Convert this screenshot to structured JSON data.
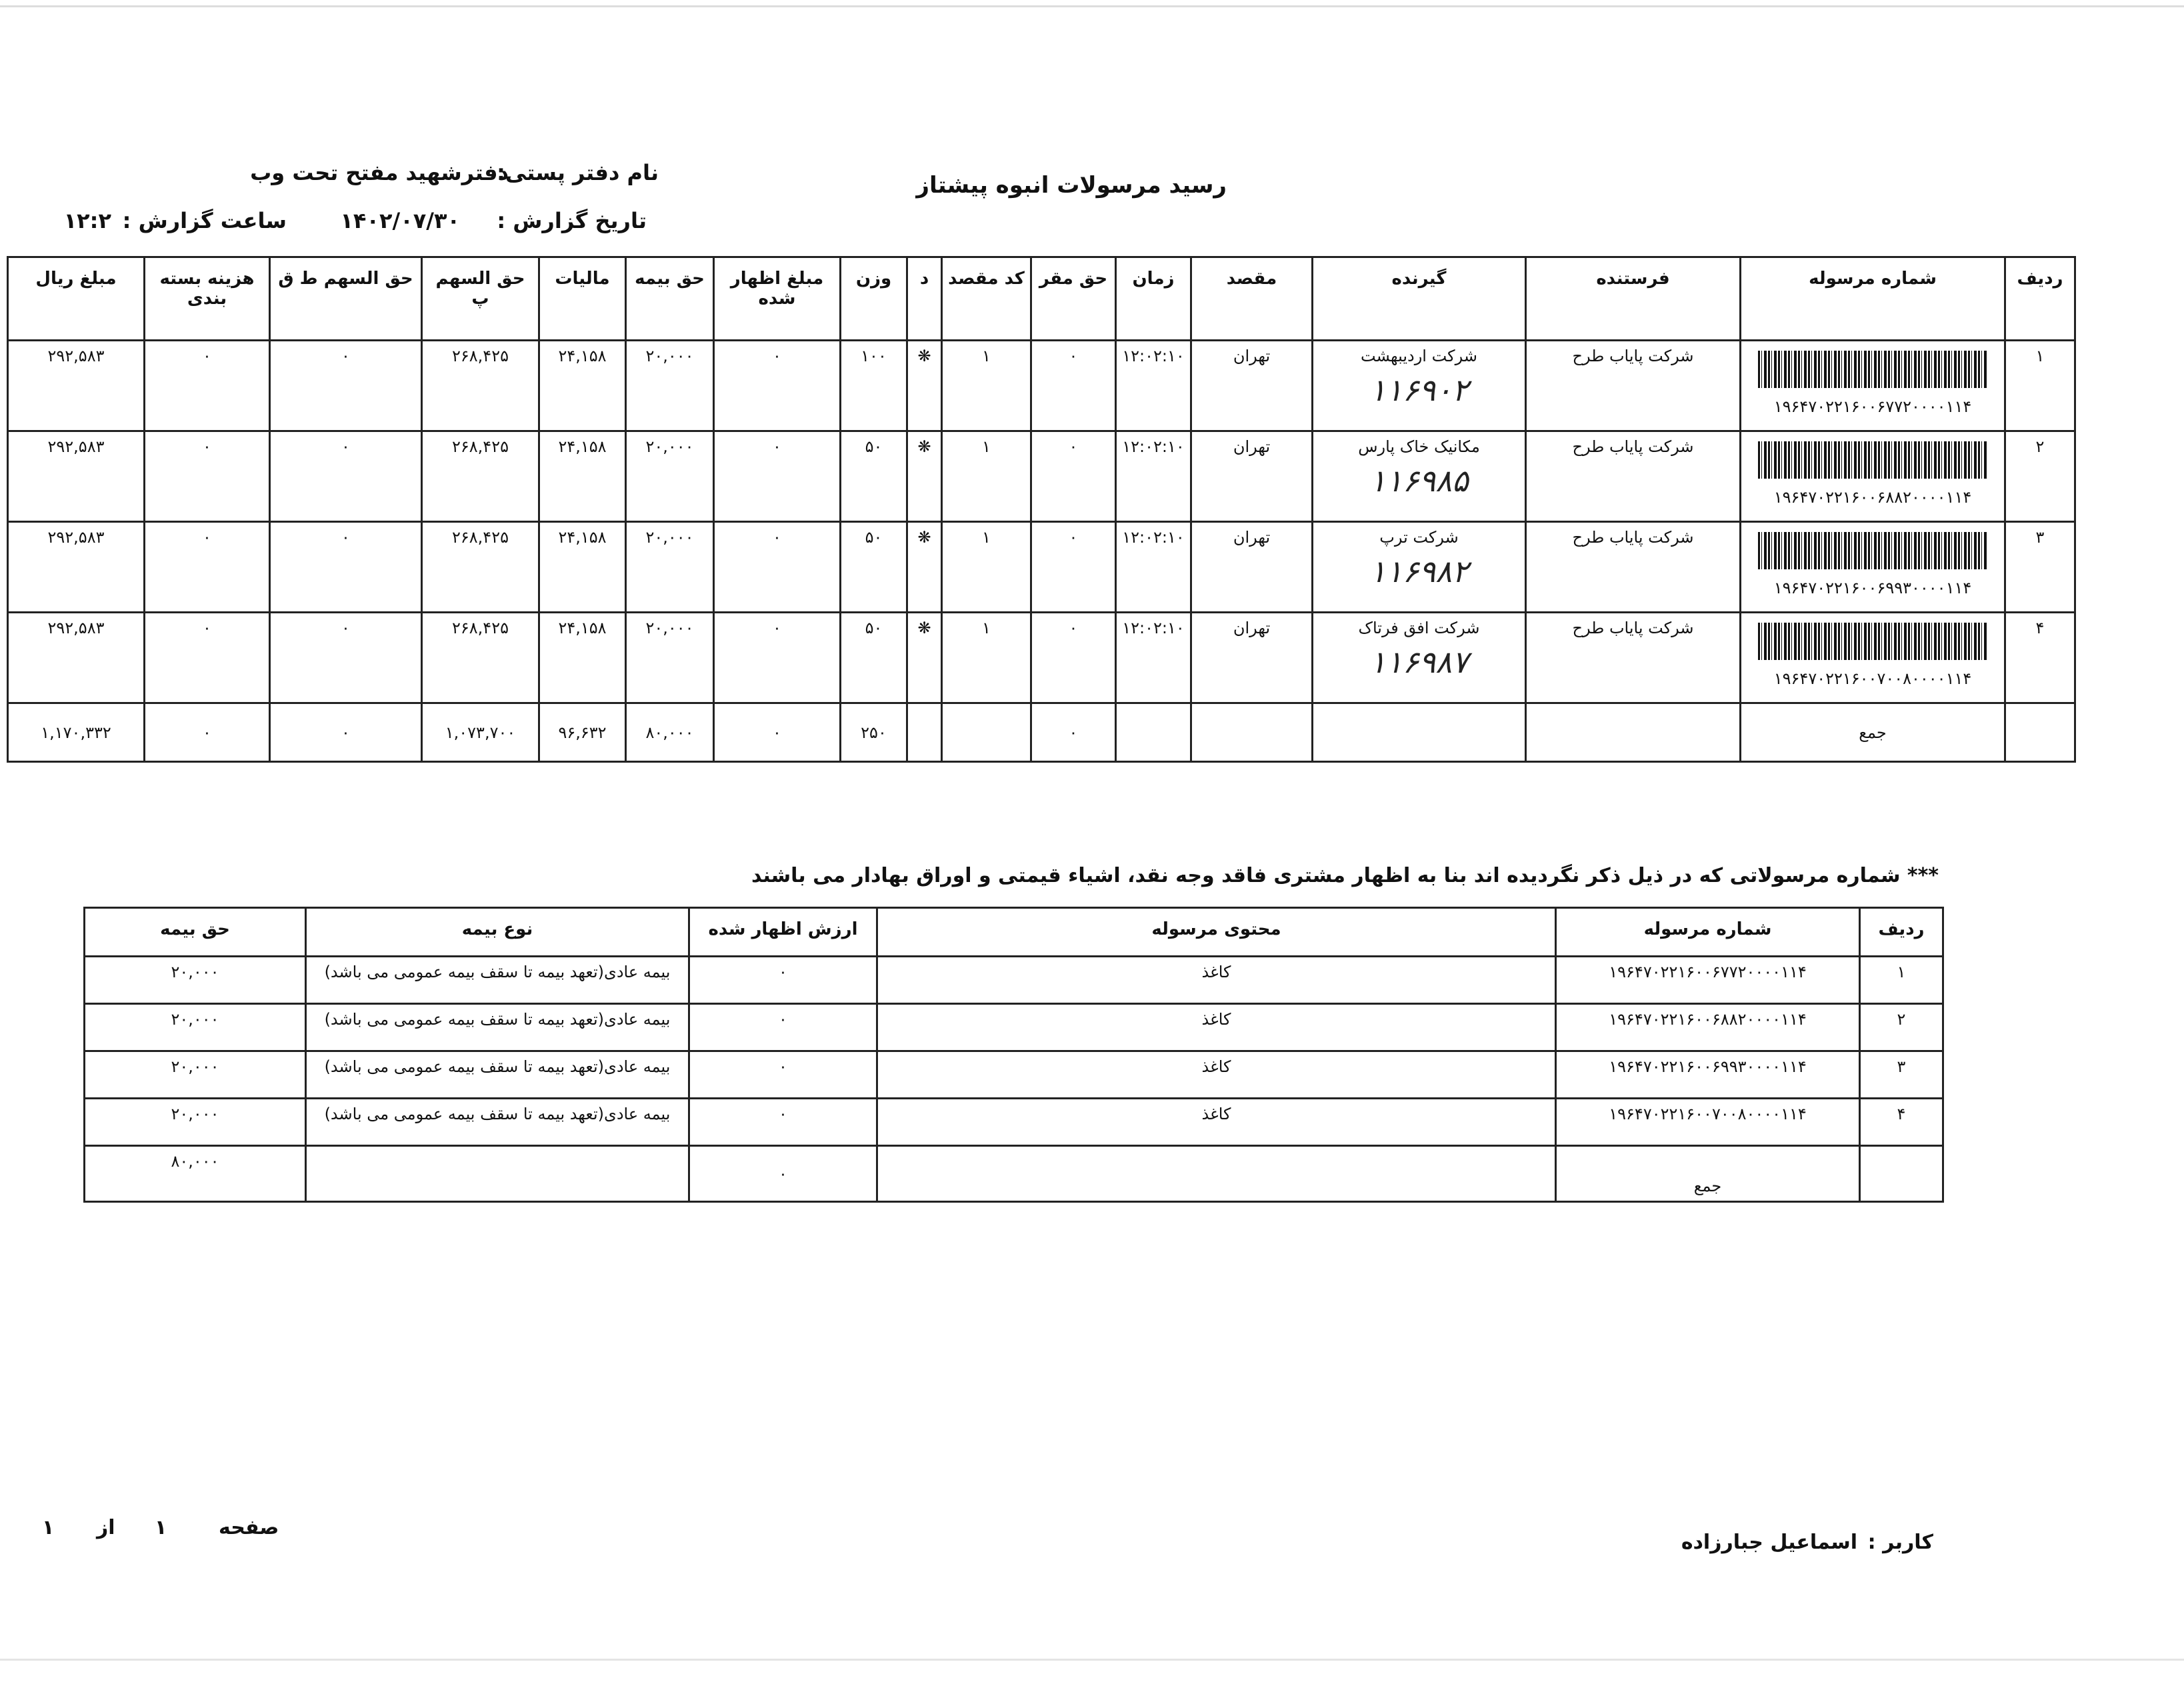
{
  "header": {
    "title": "رسید مرسولات انبوه    پیشتاز",
    "office_label": "نام دفتر پستی:",
    "office_value": "دفترشهید مفتح تحت وب",
    "date_label": "تاریخ گزارش :",
    "date_value": "۱۴۰۲/۰۷/۳۰",
    "time_label": "ساعت گزارش :",
    "time_value": "۱۲:۲"
  },
  "main_table": {
    "columns": [
      "ردیف",
      "شماره مرسوله",
      "فرستنده",
      "گیرنده",
      "مقصد",
      "زمان",
      "حق مقر",
      "کد مقصد",
      "د",
      "وزن",
      "مبلغ اظهار شده",
      "حق بیمه",
      "مالیات",
      "حق السهم پ",
      "حق السهم ط ق",
      "هزینه بسته بندی",
      "مبلغ ریال"
    ],
    "rows": [
      {
        "index": "۱",
        "tracking": "۱۹۶۴۷۰۲۲۱۶۰۰۶۷۷۲۰۰۰۰۱۱۴",
        "sender": "شرکت پایاب طرح",
        "receiver": "شرکت اردیبهشت",
        "handwritten": "۱۱۶۹۰۲",
        "destination": "تهران",
        "time": "۱۲:۰۲:۱۰",
        "hagh_maghar": "۰",
        "dest_code": "۱",
        "d": "❋",
        "weight": "۱۰۰",
        "declared": "۰",
        "insurance": "۲۰,۰۰۰",
        "tax": "۲۴,۱۵۸",
        "share_p": "۲۶۸,۴۲۵",
        "share_tq": "۰",
        "packaging": "۰",
        "amount": "۲۹۲,۵۸۳"
      },
      {
        "index": "۲",
        "tracking": "۱۹۶۴۷۰۲۲۱۶۰۰۶۸۸۲۰۰۰۰۱۱۴",
        "sender": "شرکت پایاب طرح",
        "receiver": "مکانیک خاک پارس",
        "handwritten": "۱۱۶۹۸۵",
        "destination": "تهران",
        "time": "۱۲:۰۲:۱۰",
        "hagh_maghar": "۰",
        "dest_code": "۱",
        "d": "❋",
        "weight": "۵۰",
        "declared": "۰",
        "insurance": "۲۰,۰۰۰",
        "tax": "۲۴,۱۵۸",
        "share_p": "۲۶۸,۴۲۵",
        "share_tq": "۰",
        "packaging": "۰",
        "amount": "۲۹۲,۵۸۳"
      },
      {
        "index": "۳",
        "tracking": "۱۹۶۴۷۰۲۲۱۶۰۰۶۹۹۳۰۰۰۰۱۱۴",
        "sender": "شرکت پایاب طرح",
        "receiver": "شرکت ترپ",
        "handwritten": "۱۱۶۹۸۲",
        "destination": "تهران",
        "time": "۱۲:۰۲:۱۰",
        "hagh_maghar": "۰",
        "dest_code": "۱",
        "d": "❋",
        "weight": "۵۰",
        "declared": "۰",
        "insurance": "۲۰,۰۰۰",
        "tax": "۲۴,۱۵۸",
        "share_p": "۲۶۸,۴۲۵",
        "share_tq": "۰",
        "packaging": "۰",
        "amount": "۲۹۲,۵۸۳"
      },
      {
        "index": "۴",
        "tracking": "۱۹۶۴۷۰۲۲۱۶۰۰۷۰۰۸۰۰۰۰۱۱۴",
        "sender": "شرکت پایاب طرح",
        "receiver": "شرکت افق فرتاک",
        "handwritten": "۱۱۶۹۸۷",
        "destination": "تهران",
        "time": "۱۲:۰۲:۱۰",
        "hagh_maghar": "۰",
        "dest_code": "۱",
        "d": "❋",
        "weight": "۵۰",
        "declared": "۰",
        "insurance": "۲۰,۰۰۰",
        "tax": "۲۴,۱۵۸",
        "share_p": "۲۶۸,۴۲۵",
        "share_tq": "۰",
        "packaging": "۰",
        "amount": "۲۹۲,۵۸۳"
      }
    ],
    "total": {
      "label": "جمع",
      "hagh_maghar": "۰",
      "weight": "۲۵۰",
      "declared": "۰",
      "insurance": "۸۰,۰۰۰",
      "tax": "۹۶,۶۳۲",
      "share_p": "۱,۰۷۳,۷۰۰",
      "share_tq": "۰",
      "packaging": "۰",
      "amount": "۱,۱۷۰,۳۳۲"
    }
  },
  "note": "*** شماره مرسولاتی که در ذیل ذکر نگردیده اند بنا به اظهار مشتری فاقد وجه نقد، اشیاء قیمتی و اوراق بهادار می باشند",
  "second_table": {
    "columns": [
      "ردیف",
      "شماره مرسوله",
      "محتوی مرسوله",
      "ارزش اظهار شده",
      "نوع بیمه",
      "حق بیمه"
    ],
    "rows": [
      {
        "index": "۱",
        "tracking": "۱۹۶۴۷۰۲۲۱۶۰۰۶۷۷۲۰۰۰۰۱۱۴",
        "content": "کاغذ",
        "declared": "۰",
        "type": "بیمه عادی(تعهد بیمه تا سقف بیمه عمومی می باشد)",
        "insurance": "۲۰,۰۰۰"
      },
      {
        "index": "۲",
        "tracking": "۱۹۶۴۷۰۲۲۱۶۰۰۶۸۸۲۰۰۰۰۱۱۴",
        "content": "کاغذ",
        "declared": "۰",
        "type": "بیمه عادی(تعهد بیمه تا سقف بیمه عمومی می باشد)",
        "insurance": "۲۰,۰۰۰"
      },
      {
        "index": "۳",
        "tracking": "۱۹۶۴۷۰۲۲۱۶۰۰۶۹۹۳۰۰۰۰۱۱۴",
        "content": "کاغذ",
        "declared": "۰",
        "type": "بیمه عادی(تعهد بیمه تا سقف بیمه عمومی می باشد)",
        "insurance": "۲۰,۰۰۰"
      },
      {
        "index": "۴",
        "tracking": "۱۹۶۴۷۰۲۲۱۶۰۰۷۰۰۸۰۰۰۰۱۱۴",
        "content": "کاغذ",
        "declared": "۰",
        "type": "بیمه عادی(تعهد بیمه تا سقف بیمه عمومی می باشد)",
        "insurance": "۲۰,۰۰۰"
      }
    ],
    "total": {
      "label": "جمع",
      "declared": "۰",
      "insurance": "۸۰,۰۰۰"
    }
  },
  "footer": {
    "user_label": "کاربر :",
    "user_name": "اسماعیل جبارزاده",
    "page_label": "صفحه",
    "page_current": "۱",
    "page_of": "از",
    "page_total": "۱"
  }
}
